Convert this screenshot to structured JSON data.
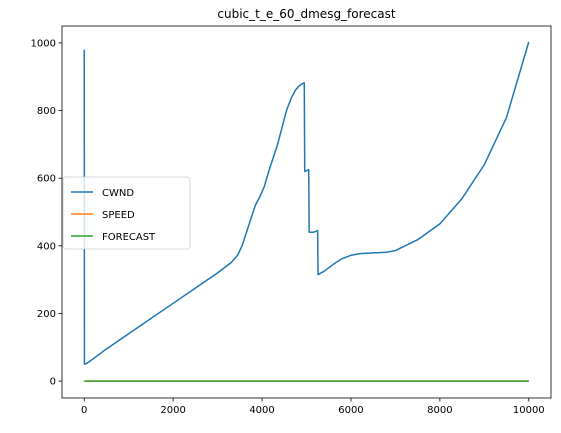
{
  "chart_data": {
    "type": "line",
    "title": "cubic_t_e_60_dmesg_forecast",
    "xlabel": "",
    "ylabel": "",
    "xlim": [
      -500,
      10500
    ],
    "ylim": [
      -50,
      1050
    ],
    "x_ticks": [
      0,
      2000,
      4000,
      6000,
      8000,
      10000
    ],
    "y_ticks": [
      0,
      200,
      400,
      600,
      800,
      1000
    ],
    "grid": false,
    "legend": "center-left",
    "series": [
      {
        "name": "CWND",
        "color": "#1f77b4",
        "points": [
          [
            0,
            980
          ],
          [
            5,
            50
          ],
          [
            50,
            52
          ],
          [
            100,
            56
          ],
          [
            500,
            95
          ],
          [
            1000,
            140
          ],
          [
            1500,
            185
          ],
          [
            2000,
            230
          ],
          [
            2500,
            275
          ],
          [
            3000,
            320
          ],
          [
            3300,
            350
          ],
          [
            3450,
            372
          ],
          [
            3550,
            400
          ],
          [
            3650,
            440
          ],
          [
            3750,
            480
          ],
          [
            3850,
            520
          ],
          [
            3950,
            545
          ],
          [
            4050,
            575
          ],
          [
            4150,
            620
          ],
          [
            4250,
            660
          ],
          [
            4350,
            700
          ],
          [
            4450,
            750
          ],
          [
            4550,
            800
          ],
          [
            4650,
            835
          ],
          [
            4750,
            860
          ],
          [
            4850,
            875
          ],
          [
            4950,
            882
          ],
          [
            4960,
            620
          ],
          [
            5050,
            625
          ],
          [
            5060,
            440
          ],
          [
            5150,
            440
          ],
          [
            5250,
            445
          ],
          [
            5260,
            315
          ],
          [
            5400,
            325
          ],
          [
            5600,
            345
          ],
          [
            5800,
            362
          ],
          [
            6000,
            372
          ],
          [
            6200,
            377
          ],
          [
            6500,
            379
          ],
          [
            6800,
            381
          ],
          [
            7000,
            386
          ],
          [
            7500,
            418
          ],
          [
            8000,
            465
          ],
          [
            8500,
            540
          ],
          [
            9000,
            640
          ],
          [
            9500,
            780
          ],
          [
            10000,
            1003
          ]
        ]
      },
      {
        "name": "SPEED",
        "color": "#ff7f0e",
        "points": [
          [
            0,
            0
          ],
          [
            10000,
            0
          ]
        ]
      },
      {
        "name": "FORECAST",
        "color": "#2ca02c",
        "points": [
          [
            0,
            0
          ],
          [
            10000,
            0
          ]
        ]
      }
    ]
  }
}
